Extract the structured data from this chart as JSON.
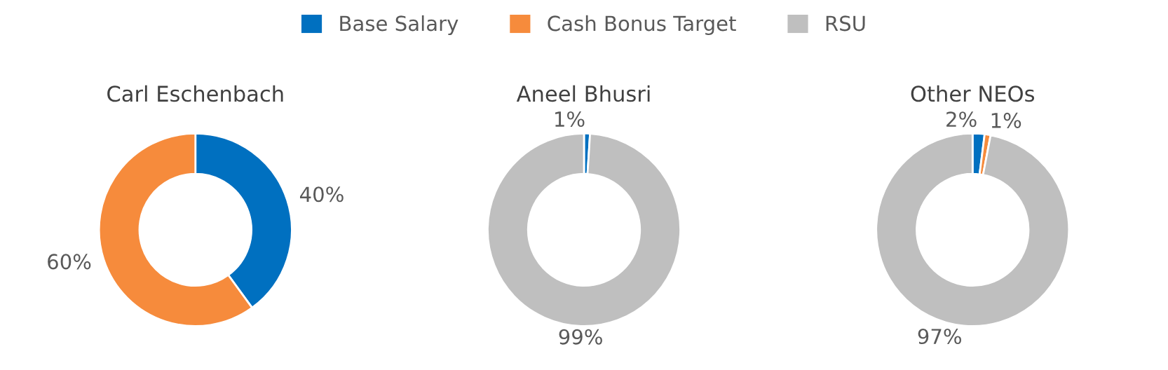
{
  "chart_data": [
    {
      "type": "donut",
      "title": "Carl Eschenbach",
      "categories": [
        "Base Salary",
        "Cash Bonus Target",
        "RSU"
      ],
      "values": [
        40,
        60,
        0
      ],
      "colors": [
        "#0070c0",
        "#f68b3c",
        "#bfbfbf"
      ],
      "value_labels": [
        "40%",
        "60%",
        null
      ],
      "legend": "top"
    },
    {
      "type": "donut",
      "title": "Aneel Bhusri",
      "values": [
        1,
        0,
        99
      ],
      "colors": [
        "#0070c0",
        "#f68b3c",
        "#bfbfbf"
      ],
      "value_labels": [
        "1%",
        null,
        "99%"
      ]
    },
    {
      "type": "donut",
      "title": "Other NEOs",
      "values": [
        2,
        1,
        97
      ],
      "colors": [
        "#0070c0",
        "#f68b3c",
        "#bfbfbf"
      ],
      "value_labels": [
        "2%",
        "1%",
        "97%"
      ]
    }
  ]
}
